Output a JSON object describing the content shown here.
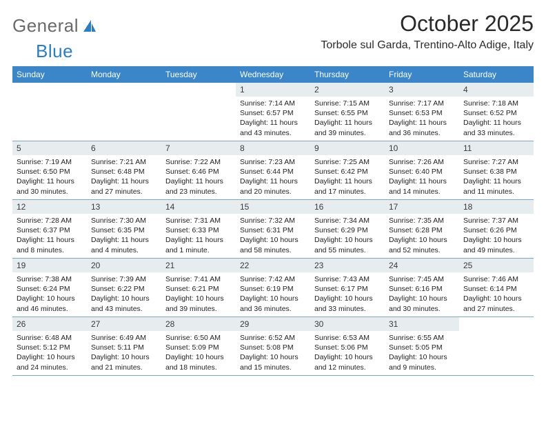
{
  "brand": {
    "text1": "General",
    "text2": "Blue",
    "logo_fill": "#2a7ec5",
    "gray": "#6a6a6a"
  },
  "title": "October 2025",
  "location": "Torbole sul Garda, Trentino-Alto Adige, Italy",
  "colors": {
    "header_bg": "#3a86c8",
    "header_text": "#ffffff",
    "daybar_bg": "#e7edef",
    "rule": "#7aa7c8",
    "text": "#222222"
  },
  "weekdays": [
    "Sunday",
    "Monday",
    "Tuesday",
    "Wednesday",
    "Thursday",
    "Friday",
    "Saturday"
  ],
  "weeks": [
    [
      {
        "blank": true
      },
      {
        "blank": true
      },
      {
        "blank": true
      },
      {
        "n": "1",
        "sunrise": "7:14 AM",
        "sunset": "6:57 PM",
        "dayh": "11",
        "daym": "43"
      },
      {
        "n": "2",
        "sunrise": "7:15 AM",
        "sunset": "6:55 PM",
        "dayh": "11",
        "daym": "39"
      },
      {
        "n": "3",
        "sunrise": "7:17 AM",
        "sunset": "6:53 PM",
        "dayh": "11",
        "daym": "36"
      },
      {
        "n": "4",
        "sunrise": "7:18 AM",
        "sunset": "6:52 PM",
        "dayh": "11",
        "daym": "33"
      }
    ],
    [
      {
        "n": "5",
        "sunrise": "7:19 AM",
        "sunset": "6:50 PM",
        "dayh": "11",
        "daym": "30"
      },
      {
        "n": "6",
        "sunrise": "7:21 AM",
        "sunset": "6:48 PM",
        "dayh": "11",
        "daym": "27"
      },
      {
        "n": "7",
        "sunrise": "7:22 AM",
        "sunset": "6:46 PM",
        "dayh": "11",
        "daym": "23"
      },
      {
        "n": "8",
        "sunrise": "7:23 AM",
        "sunset": "6:44 PM",
        "dayh": "11",
        "daym": "20"
      },
      {
        "n": "9",
        "sunrise": "7:25 AM",
        "sunset": "6:42 PM",
        "dayh": "11",
        "daym": "17"
      },
      {
        "n": "10",
        "sunrise": "7:26 AM",
        "sunset": "6:40 PM",
        "dayh": "11",
        "daym": "14"
      },
      {
        "n": "11",
        "sunrise": "7:27 AM",
        "sunset": "6:38 PM",
        "dayh": "11",
        "daym": "11"
      }
    ],
    [
      {
        "n": "12",
        "sunrise": "7:28 AM",
        "sunset": "6:37 PM",
        "dayh": "11",
        "daym": "8"
      },
      {
        "n": "13",
        "sunrise": "7:30 AM",
        "sunset": "6:35 PM",
        "dayh": "11",
        "daym": "4"
      },
      {
        "n": "14",
        "sunrise": "7:31 AM",
        "sunset": "6:33 PM",
        "dayh": "11",
        "daym": "1",
        "minute_word": "minute"
      },
      {
        "n": "15",
        "sunrise": "7:32 AM",
        "sunset": "6:31 PM",
        "dayh": "10",
        "daym": "58"
      },
      {
        "n": "16",
        "sunrise": "7:34 AM",
        "sunset": "6:29 PM",
        "dayh": "10",
        "daym": "55"
      },
      {
        "n": "17",
        "sunrise": "7:35 AM",
        "sunset": "6:28 PM",
        "dayh": "10",
        "daym": "52"
      },
      {
        "n": "18",
        "sunrise": "7:37 AM",
        "sunset": "6:26 PM",
        "dayh": "10",
        "daym": "49"
      }
    ],
    [
      {
        "n": "19",
        "sunrise": "7:38 AM",
        "sunset": "6:24 PM",
        "dayh": "10",
        "daym": "46"
      },
      {
        "n": "20",
        "sunrise": "7:39 AM",
        "sunset": "6:22 PM",
        "dayh": "10",
        "daym": "43"
      },
      {
        "n": "21",
        "sunrise": "7:41 AM",
        "sunset": "6:21 PM",
        "dayh": "10",
        "daym": "39"
      },
      {
        "n": "22",
        "sunrise": "7:42 AM",
        "sunset": "6:19 PM",
        "dayh": "10",
        "daym": "36"
      },
      {
        "n": "23",
        "sunrise": "7:43 AM",
        "sunset": "6:17 PM",
        "dayh": "10",
        "daym": "33"
      },
      {
        "n": "24",
        "sunrise": "7:45 AM",
        "sunset": "6:16 PM",
        "dayh": "10",
        "daym": "30"
      },
      {
        "n": "25",
        "sunrise": "7:46 AM",
        "sunset": "6:14 PM",
        "dayh": "10",
        "daym": "27"
      }
    ],
    [
      {
        "n": "26",
        "sunrise": "6:48 AM",
        "sunset": "5:12 PM",
        "dayh": "10",
        "daym": "24"
      },
      {
        "n": "27",
        "sunrise": "6:49 AM",
        "sunset": "5:11 PM",
        "dayh": "10",
        "daym": "21"
      },
      {
        "n": "28",
        "sunrise": "6:50 AM",
        "sunset": "5:09 PM",
        "dayh": "10",
        "daym": "18"
      },
      {
        "n": "29",
        "sunrise": "6:52 AM",
        "sunset": "5:08 PM",
        "dayh": "10",
        "daym": "15"
      },
      {
        "n": "30",
        "sunrise": "6:53 AM",
        "sunset": "5:06 PM",
        "dayh": "10",
        "daym": "12"
      },
      {
        "n": "31",
        "sunrise": "6:55 AM",
        "sunset": "5:05 PM",
        "dayh": "10",
        "daym": "9"
      },
      {
        "blank": true
      }
    ]
  ],
  "labels": {
    "sunrise": "Sunrise:",
    "sunset": "Sunset:",
    "daylight": "Daylight:",
    "hours": "hours",
    "and": "and",
    "minutes_default": "minutes"
  }
}
